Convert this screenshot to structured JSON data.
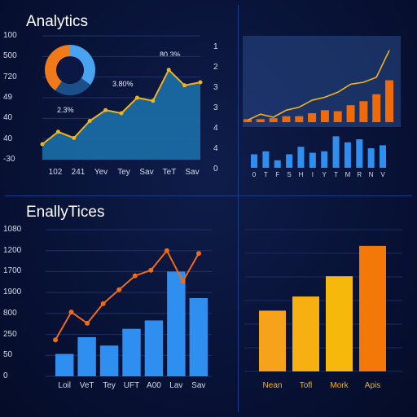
{
  "charts": {
    "top_left": {
      "title": "Analytics",
      "chart_data": {
        "type": "area",
        "title": "Analytics",
        "yticks": [
          "100",
          "500",
          "720",
          "49",
          "40",
          "40",
          "-30"
        ],
        "xticks": [
          "102",
          "241",
          "Yev",
          "Tey",
          "Sav",
          "TeT",
          "Sav"
        ],
        "values": [
          40,
          48,
          44,
          55,
          62,
          60,
          70,
          68,
          88,
          78,
          80
        ],
        "ylim": [
          30,
          110
        ],
        "annotations": [
          "2.3%",
          "3.80%",
          "80.3%"
        ],
        "colors": {
          "area": "#1b6ea8",
          "line": "#f0b41c"
        }
      },
      "donut": {
        "type": "pie",
        "values": [
          35,
          25,
          40
        ],
        "colors": [
          "#4aa3f0",
          "#1b4f8a",
          "#f07a1a"
        ]
      }
    },
    "top_right": {
      "right_axis": [
        "1",
        "2",
        "3",
        "3",
        "4",
        "4",
        "0"
      ],
      "chart_data": [
        {
          "type": "bar",
          "values": [
            3,
            3,
            4,
            6,
            6,
            9,
            12,
            11,
            17,
            21,
            28,
            42
          ],
          "trend": [
            2,
            8,
            5,
            12,
            15,
            22,
            25,
            30,
            38,
            40,
            45,
            72
          ],
          "ylim": [
            0,
            80
          ],
          "colors": {
            "bar": "#f06a0a",
            "line": "#f2b21c"
          }
        },
        {
          "type": "bar",
          "categories": [
            "0",
            "T",
            "F",
            "S",
            "H",
            "I",
            "Y",
            "T",
            "M",
            "R",
            "N",
            "V"
          ],
          "values": [
            18,
            22,
            10,
            18,
            28,
            20,
            22,
            42,
            34,
            38,
            26,
            30
          ],
          "ylim": [
            0,
            50
          ],
          "colors": {
            "bar": "#2e8ff0"
          }
        }
      ]
    },
    "bottom_left": {
      "title": "EnallyTices",
      "chart_data": {
        "type": "bar",
        "title": "EnallyTices",
        "yticks": [
          "1080",
          "1200",
          "1700",
          "1900",
          "800",
          "250",
          "50",
          "0"
        ],
        "categories": [
          "Loil",
          "VeT",
          "Tey",
          "UFT",
          "A00",
          "Lav",
          "Sav"
        ],
        "values": [
          160,
          280,
          220,
          340,
          400,
          750,
          560
        ],
        "line": [
          260,
          460,
          380,
          520,
          620,
          720,
          760,
          900,
          680,
          880
        ],
        "ylim": [
          0,
          1050
        ],
        "colors": {
          "bar": "#2f8ff0",
          "line": "#f06a1a"
        }
      }
    },
    "bottom_right": {
      "chart_data": {
        "type": "bar",
        "categories": [
          "Nean",
          "Tofl",
          "Mork",
          "Apis"
        ],
        "values": [
          300,
          370,
          470,
          620
        ],
        "ylim": [
          0,
          700
        ],
        "colors": [
          "#f6a21a",
          "#f7b012",
          "#f7b80c",
          "#f37808"
        ]
      }
    }
  }
}
